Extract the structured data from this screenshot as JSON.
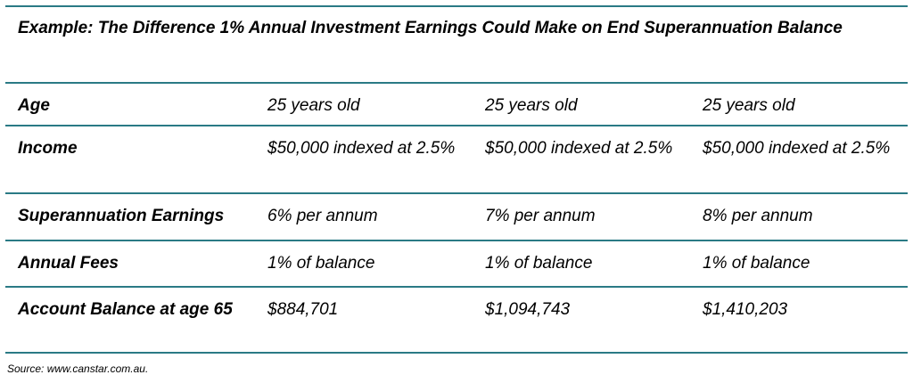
{
  "title": "Example: The Difference 1% Annual Investment Earnings Could Make on End Superannuation Balance",
  "accent_color": "#2a7a85",
  "rows": [
    {
      "label": "Age",
      "values": [
        "25 years old",
        "25 years old",
        "25 years old"
      ]
    },
    {
      "label": "Income",
      "values": [
        "$50,000 indexed at 2.5%",
        "$50,000 indexed at 2.5%",
        "$50,000 indexed at 2.5%"
      ]
    },
    {
      "label": "Superannuation Earnings",
      "values": [
        "6% per annum",
        "7% per annum",
        "8% per annum"
      ]
    },
    {
      "label": "Annual Fees",
      "values": [
        "1% of balance",
        "1% of balance",
        "1% of balance"
      ]
    },
    {
      "label": "Account Balance at age 65",
      "values": [
        "$884,701",
        "$1,094,743",
        "$1,410,203"
      ]
    }
  ],
  "source": "Source: www.canstar.com.au."
}
